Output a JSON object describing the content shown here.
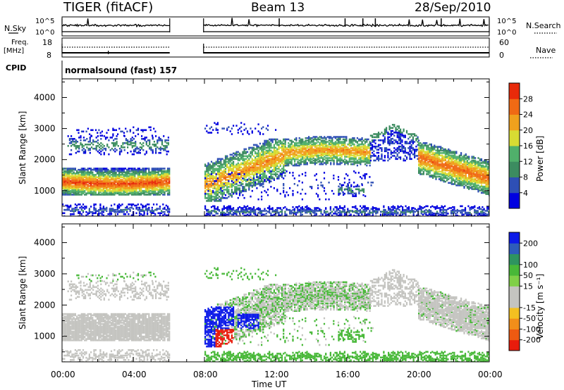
{
  "header": {
    "station": "TIGER (fitACF)",
    "beam": "Beam 13",
    "date": "28/Sep/2010"
  },
  "top_panels": {
    "nsky_label": "N.Sky",
    "nsearch_label": "N.Search",
    "nsky_ticks": [
      "10^5",
      "10^0"
    ],
    "nsearch_ticks": [
      "10^5",
      "10^0"
    ],
    "freq_label_1": "Freq.",
    "freq_label_2": "[MHz]",
    "freq_ticks": [
      "18",
      "8"
    ],
    "nave_label": "Nave",
    "nave_ticks": [
      "60",
      "0"
    ],
    "cpid_label": "CPID",
    "cpid_value": "normalsound (fast) 157"
  },
  "colors": {
    "power_scale": [
      "#0000e0",
      "#2e4fb5",
      "#3c8c60",
      "#50b06b",
      "#d8dc33",
      "#f0a11d",
      "#f06a14",
      "#e82a0a"
    ],
    "velocity_scale": [
      "#e81c0c",
      "#ee5a12",
      "#f28e1a",
      "#f3c021",
      "#c4c4c0",
      "#c4c4c0",
      "#80d048",
      "#48b838",
      "#2e9460",
      "#2e5cba",
      "#0c1ae8"
    ],
    "gray": "#c4c4c0"
  },
  "power_colorbar": {
    "title": "Power [dB]",
    "ticks": [
      "4",
      "8",
      "12",
      "16",
      "20",
      "24",
      "28"
    ]
  },
  "velocity_colorbar": {
    "title": "Velocity [m s⁻¹]",
    "ticks": [
      "-200",
      "-100",
      "-50",
      "-15",
      "15",
      "50",
      "100",
      "200"
    ]
  },
  "chart_data": [
    {
      "type": "heatmap",
      "name": "Backscatter power",
      "x_axis": {
        "label": "Time UT",
        "range_hours": [
          0,
          24
        ],
        "ticks": [
          "00:00",
          "04:00",
          "08:00",
          "12:00",
          "16:00",
          "20:00",
          "00:00"
        ]
      },
      "y_axis": {
        "label": "Slant Range [km]",
        "range_km": [
          180,
          4600
        ],
        "ticks": [
          "1000",
          "2000",
          "3000",
          "4000"
        ]
      },
      "colorbar": {
        "label": "Power [dB]",
        "range": [
          0,
          30
        ]
      },
      "data_gap_hours": [
        6.05,
        7.95
      ],
      "features": [
        {
          "time_hours": [
            0,
            6.0
          ],
          "range_km": [
            950,
            1700
          ],
          "power_db": 26
        },
        {
          "time_hours": [
            0.5,
            6.0
          ],
          "range_km": [
            2200,
            2800
          ],
          "power_db": 10
        },
        {
          "time_hours": [
            8.0,
            12.0
          ],
          "range_km": [
            800,
            2400
          ],
          "power_db": 18
        },
        {
          "time_hours": [
            12.0,
            17.0
          ],
          "range_km": [
            1900,
            2600
          ],
          "power_db": 20
        },
        {
          "time_hours": [
            17.5,
            19.5
          ],
          "range_km": [
            2000,
            3200
          ],
          "power_db": 6
        },
        {
          "time_hours": [
            20.0,
            24.0
          ],
          "range_km": [
            1000,
            2400
          ],
          "power_db": 25
        }
      ]
    },
    {
      "type": "heatmap",
      "name": "Line-of-sight velocity",
      "x_axis": {
        "label": "Time UT",
        "range_hours": [
          0,
          24
        ],
        "ticks": [
          "00:00",
          "04:00",
          "08:00",
          "12:00",
          "16:00",
          "20:00",
          "00:00"
        ]
      },
      "y_axis": {
        "label": "Slant Range [km]",
        "range_km": [
          180,
          4600
        ],
        "ticks": [
          "1000",
          "2000",
          "3000",
          "4000"
        ]
      },
      "colorbar": {
        "label": "Velocity [m s⁻¹]",
        "range": [
          -200,
          200
        ]
      },
      "data_gap_hours": [
        6.05,
        7.95
      ],
      "features": [
        {
          "time_hours": [
            0,
            6.0
          ],
          "range_km": [
            950,
            1800
          ],
          "velocity_ms": 0
        },
        {
          "time_hours": [
            8.0,
            9.5
          ],
          "range_km": [
            800,
            1900
          ],
          "velocity_ms": 200
        },
        {
          "time_hours": [
            8.5,
            9.5
          ],
          "range_km": [
            800,
            1200
          ],
          "velocity_ms": -200
        },
        {
          "time_hours": [
            10.0,
            11.0
          ],
          "range_km": [
            1300,
            1700
          ],
          "velocity_ms": 200
        },
        {
          "time_hours": [
            12.0,
            17.0
          ],
          "range_km": [
            1900,
            2600
          ],
          "velocity_ms": 30
        },
        {
          "time_hours": [
            20.0,
            24.0
          ],
          "range_km": [
            1000,
            2300
          ],
          "velocity_ms": 0
        }
      ]
    }
  ]
}
